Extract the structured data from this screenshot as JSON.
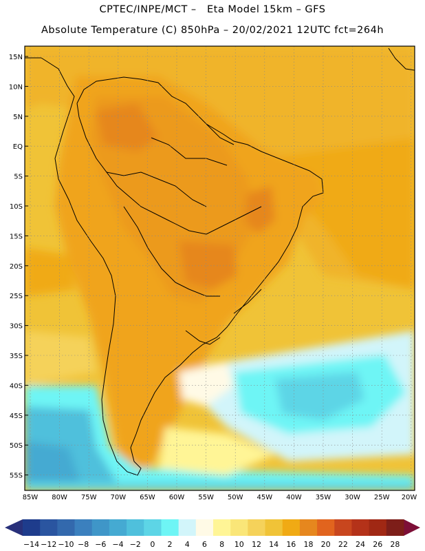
{
  "header": {
    "line1": "CPTEC/INPE/MCT –   Eta Model 15km – GFS",
    "line2": "Absolute Temperature (C) 850hPa – 20/02/2021 12UTC fct=264h"
  },
  "axes": {
    "lat_labels": [
      "15N",
      "10N",
      "5N",
      "EQ",
      "5S",
      "10S",
      "15S",
      "20S",
      "25S",
      "30S",
      "35S",
      "40S",
      "45S",
      "50S",
      "55S"
    ],
    "lon_labels": [
      "85W",
      "80W",
      "75W",
      "70W",
      "65W",
      "60W",
      "55W",
      "50W",
      "45W",
      "40W",
      "35W",
      "30W",
      "25W",
      "20W"
    ]
  },
  "colorbar": {
    "ticks": [
      "-14",
      "-12",
      "-10",
      "-8",
      "-6",
      "-4",
      "-2",
      "0",
      "2",
      "4",
      "6",
      "8",
      "10",
      "12",
      "14",
      "16",
      "18",
      "20",
      "22",
      "24",
      "26",
      "28"
    ],
    "colors": [
      "#1e3c8c",
      "#2a55a0",
      "#3369ad",
      "#3b80be",
      "#3f96c8",
      "#45aad2",
      "#4fc0dc",
      "#5dd5e6",
      "#6ef5f5",
      "#d2f5fa",
      "#fffae6",
      "#fff596",
      "#fae678",
      "#f5d25a",
      "#f0c337",
      "#f0aa14",
      "#e6871e",
      "#e1641e",
      "#c8461e",
      "#b43219",
      "#a02814",
      "#7d1e19"
    ],
    "under_color": "#28307a",
    "over_color": "#7d0f37"
  }
}
